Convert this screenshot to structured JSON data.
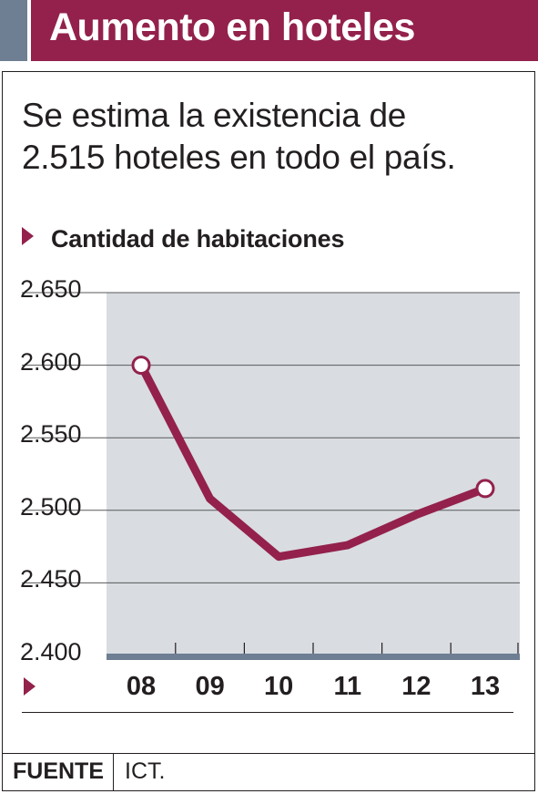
{
  "header": {
    "title": "Aumento en hoteles"
  },
  "subtitle": {
    "line1": "Se estima la existencia de",
    "line2": "2.515 hoteles en todo el país."
  },
  "chart_data": {
    "type": "line",
    "title": "Cantidad de habitaciones",
    "categories": [
      "08",
      "09",
      "10",
      "11",
      "12",
      "13"
    ],
    "series": [
      {
        "values": [
          2600,
          2508,
          2468,
          2476,
          2497,
          2515
        ]
      }
    ],
    "ylim": [
      2400,
      2650
    ],
    "yticks": [
      2400,
      2450,
      2500,
      2550,
      2600,
      2650
    ],
    "ytick_labels": [
      "2.400",
      "2.450",
      "2.500",
      "2.550",
      "2.600",
      "2.650"
    ],
    "grid": true,
    "marked_points": [
      0,
      5
    ],
    "colors": {
      "line": "#93214b",
      "plot_bg": "#d9dce1",
      "grid": "#58595b",
      "baseline": "#6e7e93"
    }
  },
  "footer": {
    "source_label": "FUENTE",
    "source_value": "ICT."
  }
}
